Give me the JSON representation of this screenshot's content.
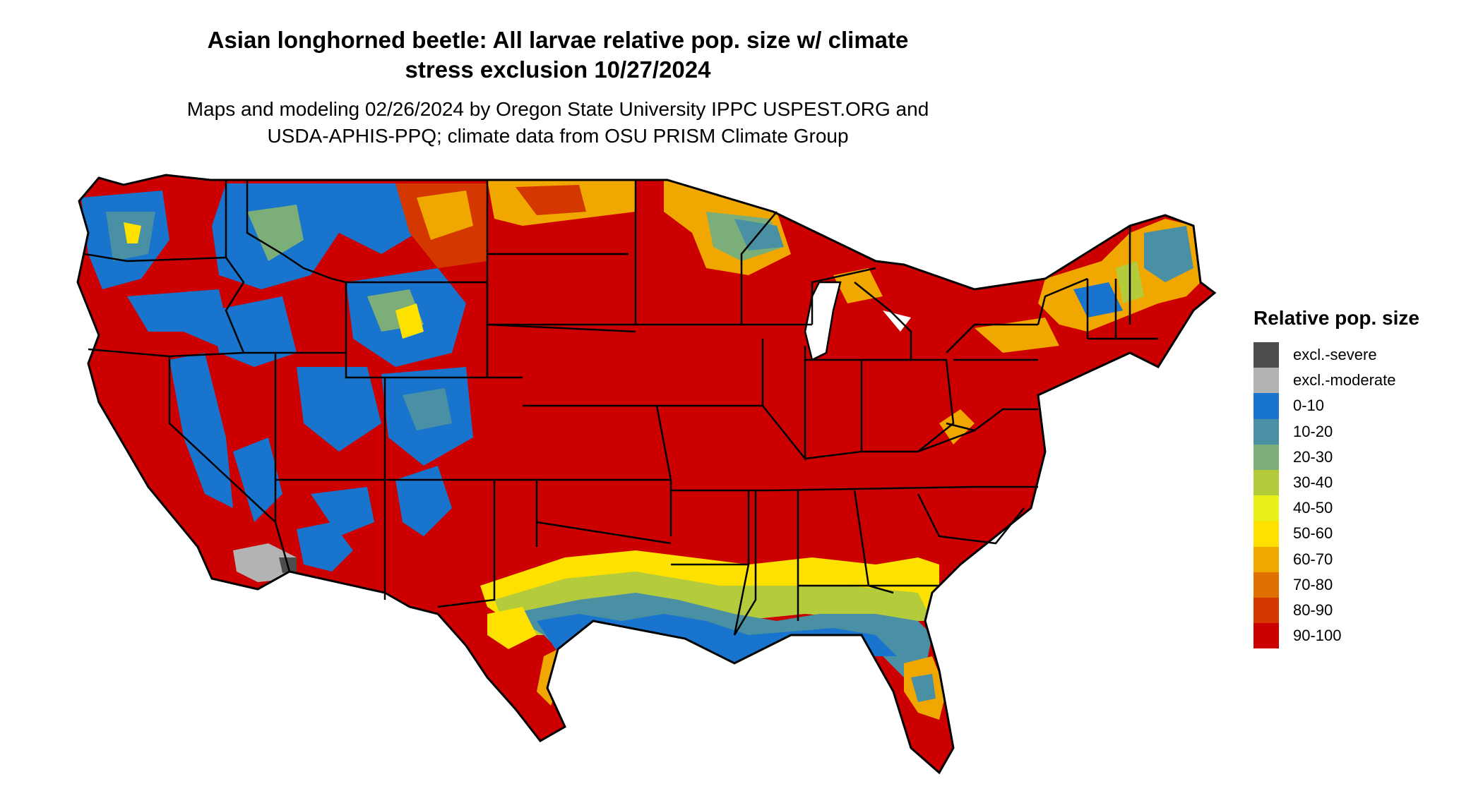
{
  "title_line1": "Asian longhorned beetle: All larvae relative pop. size w/ climate",
  "title_line2": "stress exclusion 10/27/2024",
  "subtitle_line1": "Maps and modeling 02/26/2024 by Oregon State University IPPC USPEST.ORG and",
  "subtitle_line2": "USDA-APHIS-PPQ; climate data from OSU PRISM Climate Group",
  "legend": {
    "title": "Relative pop. size",
    "items": [
      {
        "label": "excl.-severe",
        "color": "#4d4d4d"
      },
      {
        "label": "excl.-moderate",
        "color": "#b3b3b3"
      },
      {
        "label": "0-10",
        "color": "#1874cd"
      },
      {
        "label": "10-20",
        "color": "#4a90a4"
      },
      {
        "label": "20-30",
        "color": "#7cae7a"
      },
      {
        "label": "30-40",
        "color": "#b4cc3c"
      },
      {
        "label": "40-50",
        "color": "#e8f21a"
      },
      {
        "label": "50-60",
        "color": "#ffe100"
      },
      {
        "label": "60-70",
        "color": "#f0a800"
      },
      {
        "label": "70-80",
        "color": "#e07000"
      },
      {
        "label": "80-90",
        "color": "#d43800"
      },
      {
        "label": "90-100",
        "color": "#cc0000"
      }
    ]
  }
}
